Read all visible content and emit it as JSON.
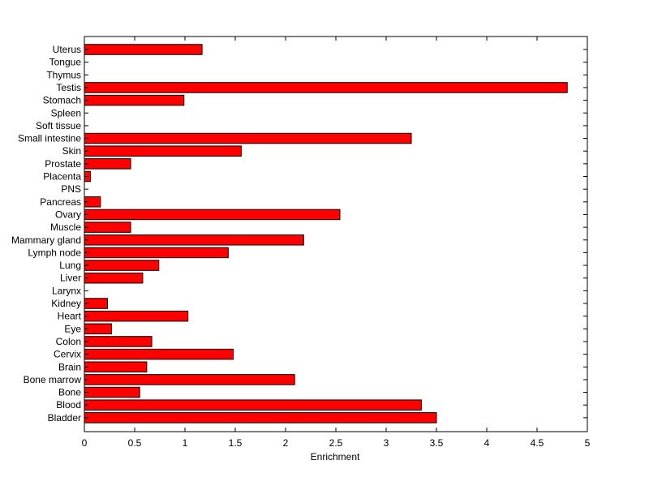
{
  "chart_data": {
    "type": "bar",
    "orientation": "horizontal",
    "title": "",
    "xlabel": "Enrichment",
    "ylabel": "",
    "xlim": [
      0,
      5
    ],
    "xticks": [
      "0",
      "0.5",
      "1",
      "1.5",
      "2",
      "2.5",
      "3",
      "3.5",
      "4",
      "4.5",
      "5"
    ],
    "grid": false,
    "bar_color": "#ff0000",
    "categories": [
      "Uterus",
      "Tongue",
      "Thymus",
      "Testis",
      "Stomach",
      "Spleen",
      "Soft tissue",
      "Small intestine",
      "Skin",
      "Prostate",
      "Placenta",
      "PNS",
      "Pancreas",
      "Ovary",
      "Muscle",
      "Mammary gland",
      "Lymph node",
      "Lung",
      "Liver",
      "Larynx",
      "Kidney",
      "Heart",
      "Eye",
      "Colon",
      "Cervix",
      "Brain",
      "Bone marrow",
      "Bone",
      "Blood",
      "Bladder"
    ],
    "values": [
      1.17,
      0,
      0,
      4.8,
      0.99,
      0,
      0,
      3.25,
      1.56,
      0.46,
      0.06,
      0,
      0.16,
      2.54,
      0.46,
      2.18,
      1.43,
      0.74,
      0.58,
      0,
      0.23,
      1.03,
      0.27,
      0.67,
      1.48,
      0.62,
      2.09,
      0.55,
      3.35,
      3.5
    ]
  }
}
